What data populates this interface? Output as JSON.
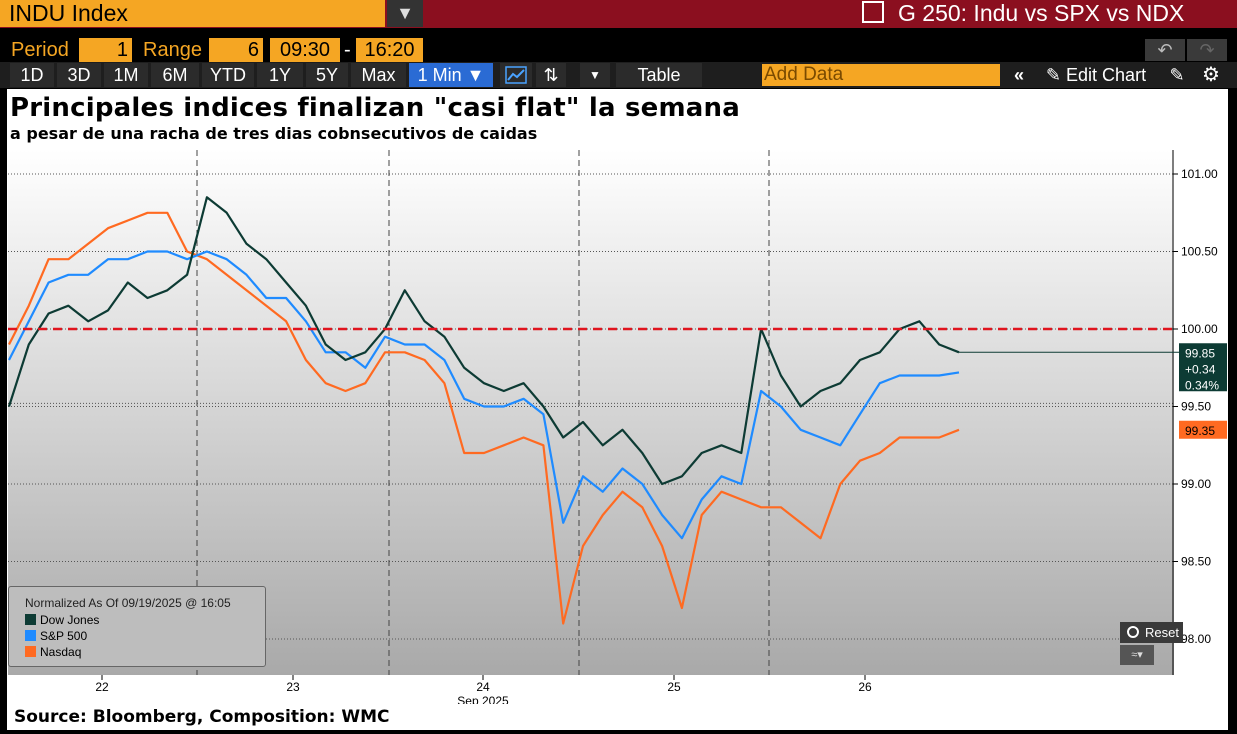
{
  "header": {
    "ticker": "INDU Index",
    "window_title": "G 250: Indu vs SPX vs NDX"
  },
  "period_row": {
    "period_label": "Period",
    "period_value": "1",
    "range_label": "Range",
    "range_value": "6",
    "time_start": "09:30",
    "time_sep": "-",
    "time_end": "16:20"
  },
  "toolbar": {
    "ranges": [
      "1D",
      "3D",
      "1M",
      "6M",
      "YTD",
      "1Y",
      "5Y",
      "Max"
    ],
    "interval": "1 Min ▼",
    "table_label": "Table",
    "add_data_placeholder": "Add Data",
    "edit_chart_label": "Edit Chart",
    "active_color": "#2a6bd4",
    "accent_color": "#f5a623"
  },
  "chart": {
    "headline": "Principales indices finalizan \"casi flat\" la semana",
    "subheadline": "a pesar de una racha de tres dias cobnsecutivos de caidas",
    "source": "Source: Bloomberg, Composition: WMC",
    "legend_title": "Normalized As Of 09/19/2025 @ 16:05",
    "reset_label": "Reset",
    "x_axis_month": "Sep 2025",
    "last_price_labels": [
      "99.85",
      "+0.34",
      "0.34%"
    ],
    "nasdaq_last_label": "99.35"
  },
  "chart_data": {
    "type": "line",
    "x_ticks": [
      "22",
      "23",
      "24",
      "25",
      "26"
    ],
    "y_ticks": [
      "101.00",
      "100.50",
      "100.00",
      "99.50",
      "99.00",
      "98.50",
      "98.00"
    ],
    "ylim": [
      97.9,
      101.1
    ],
    "reference_line": 100.0,
    "reference_color": "#e0141e",
    "grid": true,
    "legend_position": "bottom-left",
    "series": [
      {
        "name": "Dow Jones",
        "color": "#0d3b34",
        "values": [
          99.5,
          99.9,
          100.1,
          100.15,
          100.05,
          100.12,
          100.3,
          100.2,
          100.25,
          100.35,
          100.85,
          100.75,
          100.55,
          100.45,
          100.3,
          100.15,
          99.9,
          99.8,
          99.85,
          100.0,
          100.25,
          100.05,
          99.95,
          99.75,
          99.65,
          99.6,
          99.65,
          99.5,
          99.3,
          99.4,
          99.25,
          99.35,
          99.2,
          99.0,
          99.05,
          99.2,
          99.25,
          99.2,
          100.0,
          99.7,
          99.5,
          99.6,
          99.65,
          99.8,
          99.85,
          100.0,
          100.05,
          99.9,
          99.85
        ]
      },
      {
        "name": "S&P 500",
        "color": "#1f8bff",
        "values": [
          99.8,
          100.05,
          100.3,
          100.35,
          100.35,
          100.45,
          100.45,
          100.5,
          100.5,
          100.45,
          100.5,
          100.45,
          100.35,
          100.2,
          100.2,
          100.05,
          99.85,
          99.85,
          99.75,
          99.95,
          99.9,
          99.9,
          99.8,
          99.55,
          99.5,
          99.5,
          99.55,
          99.45,
          98.75,
          99.05,
          98.95,
          99.1,
          99.0,
          98.8,
          98.65,
          98.9,
          99.05,
          99.0,
          99.6,
          99.5,
          99.35,
          99.3,
          99.25,
          99.45,
          99.65,
          99.7,
          99.7,
          99.7,
          99.72
        ]
      },
      {
        "name": "Nasdaq",
        "color": "#ff6a21",
        "values": [
          99.9,
          100.15,
          100.45,
          100.45,
          100.55,
          100.65,
          100.7,
          100.75,
          100.75,
          100.5,
          100.45,
          100.35,
          100.25,
          100.15,
          100.05,
          99.8,
          99.65,
          99.6,
          99.65,
          99.85,
          99.85,
          99.8,
          99.65,
          99.2,
          99.2,
          99.25,
          99.3,
          99.25,
          98.1,
          98.6,
          98.8,
          98.95,
          98.85,
          98.6,
          98.2,
          98.8,
          98.95,
          98.9,
          98.85,
          98.85,
          98.75,
          98.65,
          99.0,
          99.15,
          99.2,
          99.3,
          99.3,
          99.3,
          99.35
        ]
      }
    ]
  }
}
